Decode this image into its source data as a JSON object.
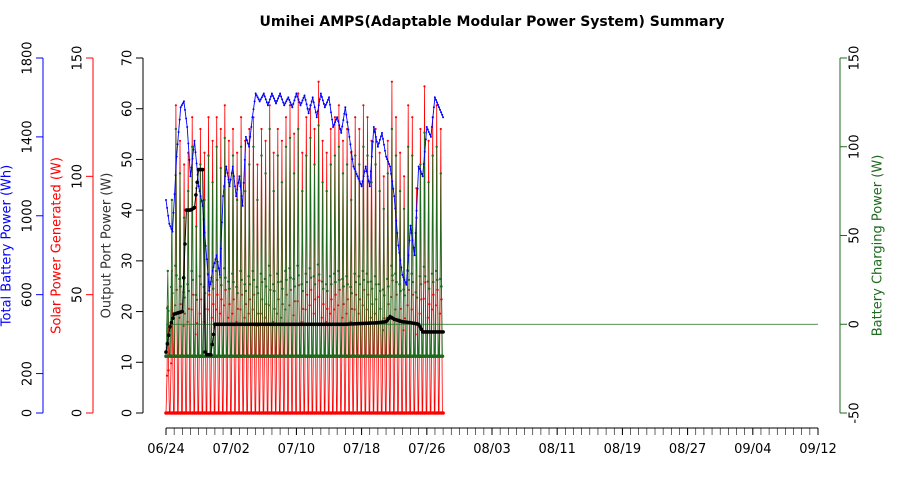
{
  "chart_data": {
    "type": "line",
    "title": "Umihei AMPS(Adaptable Modular Power System) Summary",
    "colors": {
      "battery": "#0000ff",
      "solar": "#ff0000",
      "output": "#000000",
      "charging": "#1e6b1e",
      "background": "#ffffff"
    },
    "axes": {
      "battery": {
        "label": "Total Battery Power (Wh)",
        "range": [
          0,
          1800
        ],
        "ticks": [
          "0",
          "200",
          "600",
          "1000",
          "1400",
          "1800"
        ]
      },
      "solar": {
        "label": "Solar Power Generated (W)",
        "range": [
          0,
          150
        ],
        "ticks": [
          "0",
          "50",
          "100",
          "150"
        ]
      },
      "output": {
        "label": "Output Port Power (W)",
        "range": [
          0,
          70
        ],
        "ticks": [
          "0",
          "10",
          "20",
          "30",
          "40",
          "50",
          "60",
          "70"
        ]
      },
      "charging": {
        "label": "Battery Charging Power (W)",
        "range": [
          -50,
          150
        ],
        "ticks": [
          "-50",
          "0",
          "50",
          "100",
          "150"
        ]
      }
    },
    "x_tick_labels": [
      "06/24",
      "07/02",
      "07/10",
      "07/18",
      "07/26",
      "08/03",
      "08/11",
      "08/19",
      "08/27",
      "09/04",
      "09/12"
    ],
    "x_range_days": [
      0,
      80
    ],
    "series": [
      {
        "name": "Total Battery Power (Wh)",
        "axis": "battery",
        "points": [
          [
            0,
            1080
          ],
          [
            0.4,
            960
          ],
          [
            0.8,
            920
          ],
          [
            1.3,
            1300
          ],
          [
            1.8,
            1550
          ],
          [
            2.2,
            1580
          ],
          [
            2.6,
            1450
          ],
          [
            3.0,
            1200
          ],
          [
            3.5,
            1380
          ],
          [
            4.0,
            1150
          ],
          [
            4.5,
            1050
          ],
          [
            5.0,
            780
          ],
          [
            5.3,
            620
          ],
          [
            5.7,
            720
          ],
          [
            6.2,
            800
          ],
          [
            6.6,
            700
          ],
          [
            7.0,
            1100
          ],
          [
            7.4,
            1250
          ],
          [
            7.8,
            1150
          ],
          [
            8.2,
            1250
          ],
          [
            8.6,
            1100
          ],
          [
            9.0,
            1200
          ],
          [
            9.4,
            1050
          ],
          [
            9.8,
            1400
          ],
          [
            10.2,
            1350
          ],
          [
            10.6,
            1500
          ],
          [
            11.0,
            1620
          ],
          [
            11.5,
            1580
          ],
          [
            12,
            1620
          ],
          [
            12.5,
            1560
          ],
          [
            13,
            1620
          ],
          [
            13.5,
            1570
          ],
          [
            14,
            1620
          ],
          [
            14.5,
            1560
          ],
          [
            15,
            1600
          ],
          [
            15.5,
            1550
          ],
          [
            16,
            1620
          ],
          [
            16.5,
            1560
          ],
          [
            17,
            1610
          ],
          [
            17.5,
            1520
          ],
          [
            18,
            1600
          ],
          [
            18.5,
            1500
          ],
          [
            19,
            1620
          ],
          [
            19.5,
            1550
          ],
          [
            20,
            1600
          ],
          [
            20.5,
            1450
          ],
          [
            21,
            1500
          ],
          [
            21.5,
            1420
          ],
          [
            22,
            1550
          ],
          [
            22.5,
            1400
          ],
          [
            23,
            1250
          ],
          [
            23.5,
            1200
          ],
          [
            24,
            1150
          ],
          [
            24.5,
            1250
          ],
          [
            25,
            1150
          ],
          [
            25.5,
            1450
          ],
          [
            26,
            1350
          ],
          [
            26.5,
            1420
          ],
          [
            27,
            1300
          ],
          [
            27.5,
            1250
          ],
          [
            28,
            1100
          ],
          [
            28.5,
            850
          ],
          [
            29,
            700
          ],
          [
            29.5,
            650
          ],
          [
            30,
            950
          ],
          [
            30.5,
            800
          ],
          [
            31,
            1250
          ],
          [
            31.5,
            1200
          ],
          [
            32,
            1450
          ],
          [
            32.5,
            1400
          ],
          [
            33,
            1600
          ],
          [
            33.5,
            1550
          ],
          [
            34,
            1500
          ]
        ]
      },
      {
        "name": "Solar Power Generated (W)",
        "axis": "solar",
        "days": 34,
        "peaks": [
          45,
          60,
          130,
          115,
          105,
          110,
          125,
          95,
          120,
          110,
          125,
          115,
          125,
          120,
          130,
          115,
          120,
          110,
          125,
          115,
          120,
          125,
          105,
          120,
          115,
          130,
          110,
          120,
          115,
          125,
          130,
          118,
          135,
          110,
          125,
          130,
          120,
          140,
          115,
          110,
          120,
          125,
          130,
          115,
          120,
          110,
          125,
          120,
          130,
          125,
          115,
          120,
          110,
          100,
          115,
          140,
          125,
          110,
          100,
          130,
          125,
          95,
          120,
          138,
          115,
          125,
          130,
          120
        ]
      },
      {
        "name": "Output Port Power (W)",
        "axis": "output",
        "points": [
          [
            0,
            12
          ],
          [
            0.5,
            17
          ],
          [
            1,
            19.5
          ],
          [
            2,
            20
          ],
          [
            2.5,
            40
          ],
          [
            3,
            40
          ],
          [
            3.5,
            40.5
          ],
          [
            4,
            48
          ],
          [
            4.5,
            48
          ],
          [
            4.8,
            12
          ],
          [
            5,
            11.5
          ],
          [
            5.5,
            11.5
          ],
          [
            6,
            17.5
          ],
          [
            10,
            17.5
          ],
          [
            14,
            17.5
          ],
          [
            18,
            17.5
          ],
          [
            22,
            17.5
          ],
          [
            26,
            17.8
          ],
          [
            27,
            18
          ],
          [
            27.5,
            19
          ],
          [
            28,
            18.5
          ],
          [
            29,
            18
          ],
          [
            30,
            17.8
          ],
          [
            31,
            17.5
          ],
          [
            31.5,
            16
          ],
          [
            32,
            16
          ],
          [
            34,
            16
          ]
        ]
      },
      {
        "name": "Battery Charging Power (W)",
        "axis": "charging",
        "days": 34,
        "base": -18,
        "peaks": [
          30,
          70,
          110,
          85,
          60,
          75,
          100,
          55,
          90,
          70,
          95,
          80,
          100,
          88,
          105,
          80,
          95,
          70,
          100,
          75,
          90,
          100,
          70,
          95,
          85,
          110,
          75,
          95,
          80,
          100,
          105,
          85,
          110,
          75,
          95,
          105,
          90,
          112,
          80,
          75,
          90,
          95,
          100,
          85,
          90,
          70,
          95,
          90,
          100,
          95,
          80,
          90,
          75,
          65,
          85,
          110,
          95,
          75,
          65,
          100,
          95,
          60,
          90,
          108,
          80,
          95,
          100,
          85
        ],
        "zero_line_to_day": 80
      }
    ]
  }
}
